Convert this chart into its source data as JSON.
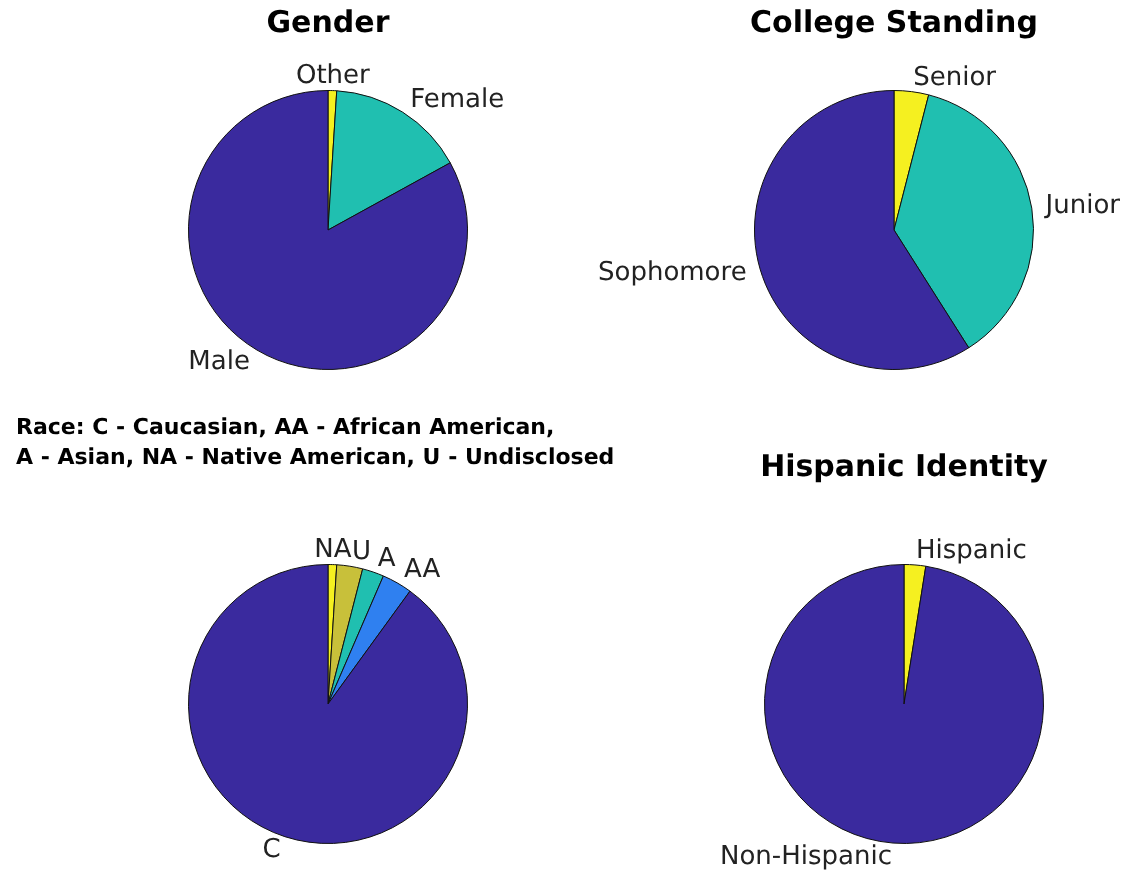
{
  "chart_data": [
    {
      "type": "pie",
      "title": "Gender",
      "categories": [
        "Other",
        "Female",
        "Male"
      ],
      "values": [
        1,
        16,
        83
      ],
      "colors": [
        "#f5f020",
        "#20bfb0",
        "#3a2a9e"
      ]
    },
    {
      "type": "pie",
      "title": "College Standing",
      "categories": [
        "Senior",
        "Junior",
        "Sophomore"
      ],
      "values": [
        4,
        37,
        59
      ],
      "colors": [
        "#f5f020",
        "#20bfb0",
        "#3a2a9e"
      ]
    },
    {
      "type": "pie",
      "title": "Race: C - Caucasian, AA - African American,\nA - Asian, NA - Native American, U - Undisclosed",
      "categories": [
        "NA",
        "U",
        "A",
        "AA",
        "C"
      ],
      "values": [
        1,
        3,
        2.5,
        3.5,
        90
      ],
      "colors": [
        "#f5f020",
        "#c8c03a",
        "#20bfb0",
        "#2f80f0",
        "#3a2a9e"
      ]
    },
    {
      "type": "pie",
      "title": "Hispanic Identity",
      "categories": [
        "Hispanic",
        "Non-Hispanic"
      ],
      "values": [
        2.5,
        97.5
      ],
      "colors": [
        "#f5f020",
        "#3a2a9e"
      ]
    }
  ]
}
